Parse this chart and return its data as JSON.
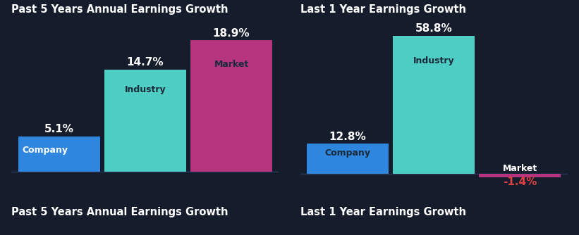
{
  "background_color": "#151c2c",
  "groups": [
    {
      "title": "Past 5 Years Annual Earnings Growth",
      "bars": [
        {
          "label": "Company",
          "value": 5.1,
          "color": "#2e86de",
          "label_outside": true
        },
        {
          "label": "Industry",
          "value": 14.7,
          "color": "#4ecdc4",
          "label_outside": false
        },
        {
          "label": "Market",
          "value": 18.9,
          "color": "#b5347e",
          "label_outside": false
        }
      ]
    },
    {
      "title": "Last 1 Year Earnings Growth",
      "bars": [
        {
          "label": "Company",
          "value": 12.8,
          "color": "#2e86de",
          "label_outside": false
        },
        {
          "label": "Industry",
          "value": 58.8,
          "color": "#4ecdc4",
          "label_outside": false
        },
        {
          "label": "Market",
          "value": -1.4,
          "color": "#b5347e",
          "label_outside": true
        }
      ]
    }
  ],
  "value_color_positive": "#ffffff",
  "value_color_negative": "#e04040",
  "label_color_dark": "#1a2a3a",
  "label_color_light": "#ffffff",
  "title_color": "#ffffff",
  "title_fontsize": 10.5,
  "value_fontsize": 11,
  "bar_label_fontsize": 9,
  "baseline_color": "#2a3a5a",
  "ylim_left": [
    -3,
    22
  ],
  "ylim_right": [
    -8,
    66
  ]
}
